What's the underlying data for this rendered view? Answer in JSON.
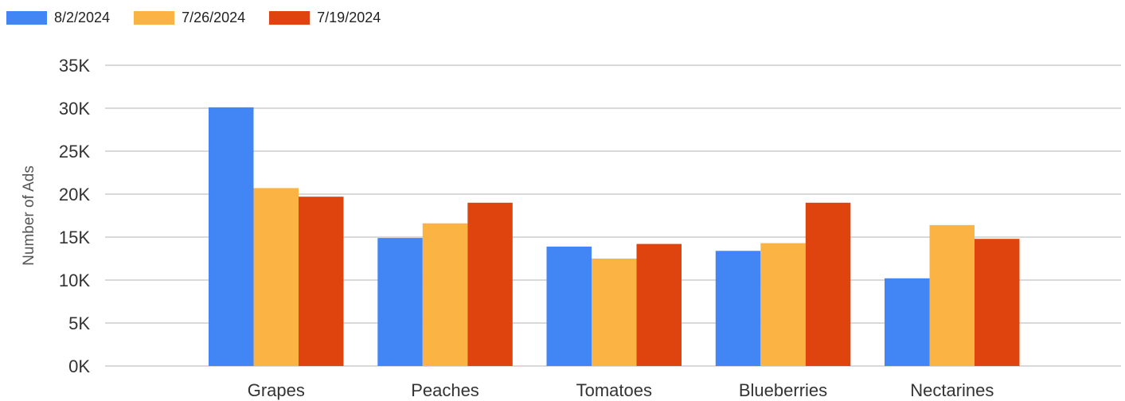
{
  "chart_data": {
    "type": "bar",
    "title": "",
    "xlabel": "",
    "ylabel": "Number of Ads",
    "ylim": [
      0,
      35000
    ],
    "y_ticks": [
      {
        "value": 0,
        "label": "0K"
      },
      {
        "value": 5000,
        "label": "5K"
      },
      {
        "value": 10000,
        "label": "10K"
      },
      {
        "value": 15000,
        "label": "15K"
      },
      {
        "value": 20000,
        "label": "20K"
      },
      {
        "value": 25000,
        "label": "25K"
      },
      {
        "value": 30000,
        "label": "30K"
      },
      {
        "value": 35000,
        "label": "35K"
      }
    ],
    "grid": true,
    "legend_position": "top-left",
    "categories": [
      "Grapes",
      "Peaches",
      "Tomatoes",
      "Blueberries",
      "Nectarines"
    ],
    "series": [
      {
        "name": "8/2/2024",
        "color": "#4285f4",
        "values": [
          30100,
          14900,
          13900,
          13400,
          10200
        ]
      },
      {
        "name": "7/26/2024",
        "color": "#fbb443",
        "values": [
          20700,
          16600,
          12500,
          14300,
          16400
        ]
      },
      {
        "name": "7/19/2024",
        "color": "#e0440e",
        "values": [
          19700,
          19000,
          14200,
          19000,
          14800
        ]
      }
    ]
  }
}
